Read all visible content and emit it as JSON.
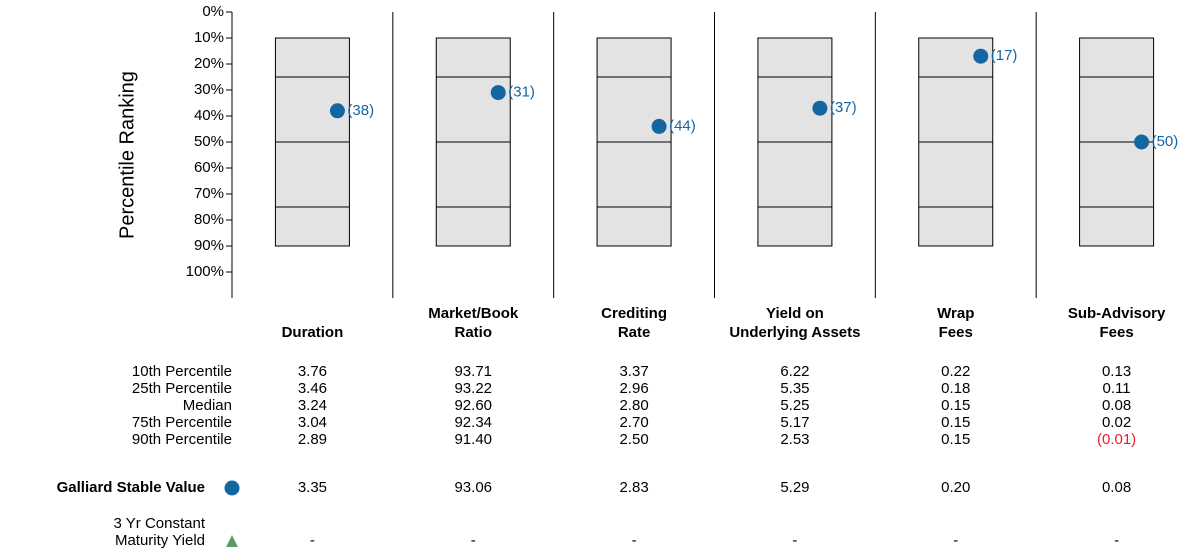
{
  "chart_data": {
    "type": "percentile_ranking",
    "y_label": "Percentile Ranking",
    "categories": [
      [
        "Duration"
      ],
      [
        "Market/Book",
        "Ratio"
      ],
      [
        "Crediting",
        "Rate"
      ],
      [
        "Yield on",
        "Underlying Assets"
      ],
      [
        "Wrap",
        "Fees"
      ],
      [
        "Sub-Advisory",
        "Fees"
      ]
    ],
    "box": {
      "p10": 10,
      "p25": 25,
      "median": 50,
      "p75": 75,
      "p90": 90,
      "color": "#e3e3e3"
    },
    "series": [
      {
        "name": [
          "Galliard Stable Value"
        ],
        "color": "#1466a3",
        "marker": "circle",
        "values": [
          38,
          31,
          44,
          37,
          17,
          50
        ],
        "value_labels": [
          "(38)",
          "(31)",
          "(44)",
          "(37)",
          "(17)",
          "(50)"
        ]
      },
      {
        "name": [
          "3 Yr Constant",
          "Maturity Yield"
        ],
        "color": "#5e9d6b",
        "marker": "triangle",
        "values": [
          null,
          null,
          null,
          null,
          null,
          null
        ]
      }
    ],
    "ylim": [
      0,
      110
    ],
    "inverted": true,
    "yticks": [
      {
        "value": 0,
        "label": "0%"
      },
      {
        "value": 10,
        "label": "10%"
      },
      {
        "value": 20,
        "label": "20%"
      },
      {
        "value": 30,
        "label": "30%"
      },
      {
        "value": 40,
        "label": "40%"
      },
      {
        "value": 50,
        "label": "50%"
      },
      {
        "value": 60,
        "label": "60%"
      },
      {
        "value": 70,
        "label": "70%"
      },
      {
        "value": 80,
        "label": "80%"
      },
      {
        "value": 90,
        "label": "90%"
      },
      {
        "value": 100,
        "label": "100%"
      }
    ]
  },
  "table": {
    "negative_color": "#e8202a",
    "rows": [
      {
        "label": "10th Percentile",
        "values": [
          "3.76",
          "93.71",
          "3.37",
          "6.22",
          "0.22",
          "0.13"
        ]
      },
      {
        "label": "25th Percentile",
        "values": [
          "3.46",
          "93.22",
          "2.96",
          "5.35",
          "0.18",
          "0.11"
        ]
      },
      {
        "label": "Median",
        "values": [
          "3.24",
          "92.60",
          "2.80",
          "5.25",
          "0.15",
          "0.08"
        ]
      },
      {
        "label": "75th Percentile",
        "values": [
          "3.04",
          "92.34",
          "2.70",
          "5.17",
          "0.15",
          "0.02"
        ]
      },
      {
        "label": "90th Percentile",
        "values": [
          "2.89",
          "91.40",
          "2.50",
          "2.53",
          "0.15",
          "(0.01)"
        ]
      }
    ],
    "series_rows": [
      {
        "values": [
          "3.35",
          "93.06",
          "2.83",
          "5.29",
          "0.20",
          "0.08"
        ]
      },
      {
        "values": [
          "-",
          "-",
          "-",
          "-",
          "-",
          "-"
        ]
      }
    ]
  }
}
